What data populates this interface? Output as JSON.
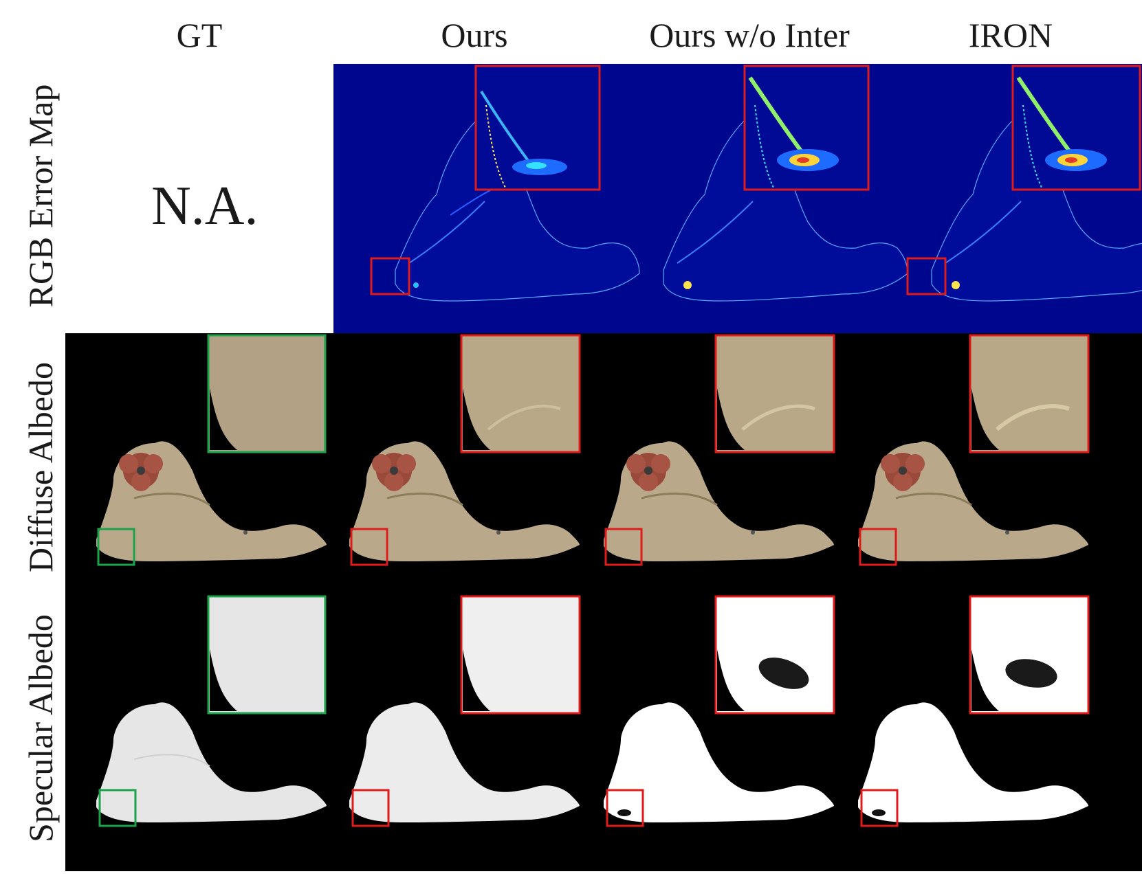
{
  "columns": [
    "GT",
    "Ours",
    "Ours w/o Inter",
    "IRON"
  ],
  "rows": [
    "RGB Error Map",
    "Diffuse Albedo",
    "Specular Albedo"
  ],
  "placeholder": "N.A.",
  "colors": {
    "error_bg": "#00078f",
    "render_bg": "#000000",
    "gt_box": "#1aa34a",
    "method_box": "#e01b1b",
    "albedo": "#b9a98a",
    "specular_gt": "#e6e6e6",
    "specular_pred": "#ffffff"
  }
}
